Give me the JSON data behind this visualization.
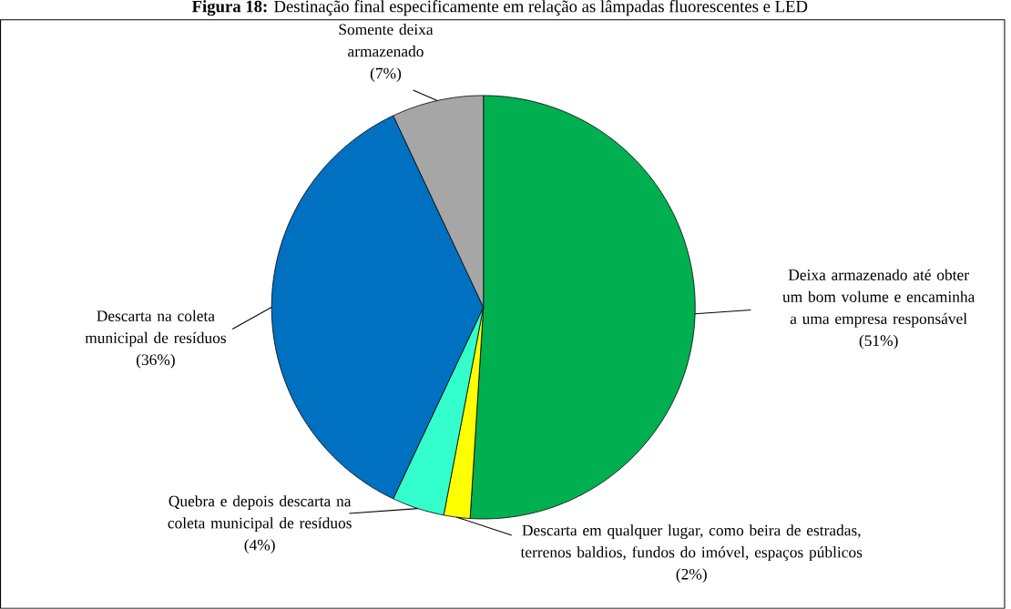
{
  "chart_data": {
    "type": "pie",
    "title": "**Figura 18:** Destinação final especificamente em relação as lâmpadas fluorescentes e LED",
    "categories": [
      "Deixa armazenado até obter um bom volume e encaminha a uma empresa responsável",
      "Descarta em qualquer lugar, como beira de estradas, terrenos baldios, fundos do imóvel, espaços públicos",
      "Quebra e depois descarta na coleta municipal de resíduos",
      "Descarta na coleta municipal de resíduos",
      "Somente deixa armazenado"
    ],
    "values": [
      51,
      2,
      4,
      36,
      7
    ],
    "value_labels": [
      "(51%)",
      "(2%)",
      "(4%)",
      "(36%)",
      "(7%)"
    ],
    "colors": [
      "#00b050",
      "#ffff00",
      "#33ffcc",
      "#0070c0",
      "#a6a6a6"
    ]
  }
}
